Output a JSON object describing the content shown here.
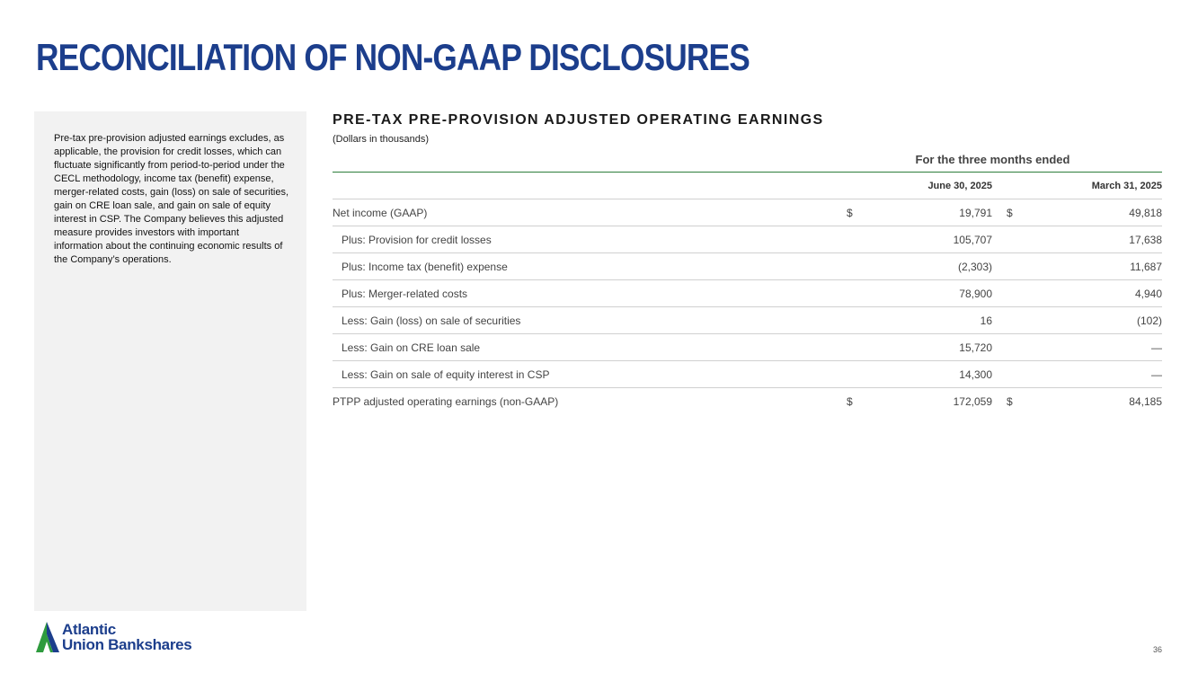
{
  "header": {
    "title": "RECONCILIATION OF NON-GAAP DISCLOSURES"
  },
  "sidebar": {
    "text": "Pre-tax pre-provision adjusted earnings excludes, as applicable, the provision for credit losses, which can fluctuate significantly from period-to-period under the CECL methodology, income tax (benefit) expense, merger-related costs, gain (loss) on sale of securities, gain on CRE loan sale, and gain on sale of equity interest in CSP. The Company believes this adjusted measure provides investors with important information about the continuing economic results of the Company’s operations."
  },
  "table": {
    "title": "PRE-TAX PRE-PROVISION ADJUSTED OPERATING EARNINGS",
    "subtitle": "(Dollars in thousands)",
    "period_header": "For the three months ended",
    "columns": [
      "June 30, 2025",
      "March 31, 2025"
    ],
    "rows": [
      {
        "label": "Net income (GAAP)",
        "cur1": "$",
        "v1": "19,791",
        "cur2": "$",
        "v2": "49,818"
      },
      {
        "label": "Plus: Provision for credit losses",
        "cur1": "",
        "v1": "105,707",
        "cur2": "",
        "v2": "17,638"
      },
      {
        "label": "Plus: Income tax (benefit) expense",
        "cur1": "",
        "v1": "(2,303)",
        "cur2": "",
        "v2": "11,687"
      },
      {
        "label": "Plus: Merger-related costs",
        "cur1": "",
        "v1": "78,900",
        "cur2": "",
        "v2": "4,940"
      },
      {
        "label": "Less: Gain (loss) on sale of securities",
        "cur1": "",
        "v1": "16",
        "cur2": "",
        "v2": "(102)"
      },
      {
        "label": "Less: Gain on CRE loan sale",
        "cur1": "",
        "v1": "15,720",
        "cur2": "",
        "v2": "—"
      },
      {
        "label": "Less: Gain on sale of equity interest in CSP",
        "cur1": "",
        "v1": "14,300",
        "cur2": "",
        "v2": "—"
      },
      {
        "label": "PTPP adjusted operating earnings (non-GAAP)",
        "cur1": "$",
        "v1": "172,059",
        "cur2": "$",
        "v2": "84,185"
      }
    ]
  },
  "logo": {
    "line1": "Atlantic",
    "line2": "Union Bankshares",
    "icon": "logo-mark-icon",
    "green": "#2e9b3e",
    "blue": "#1c3e8c"
  },
  "footer": {
    "page_number": "36"
  }
}
